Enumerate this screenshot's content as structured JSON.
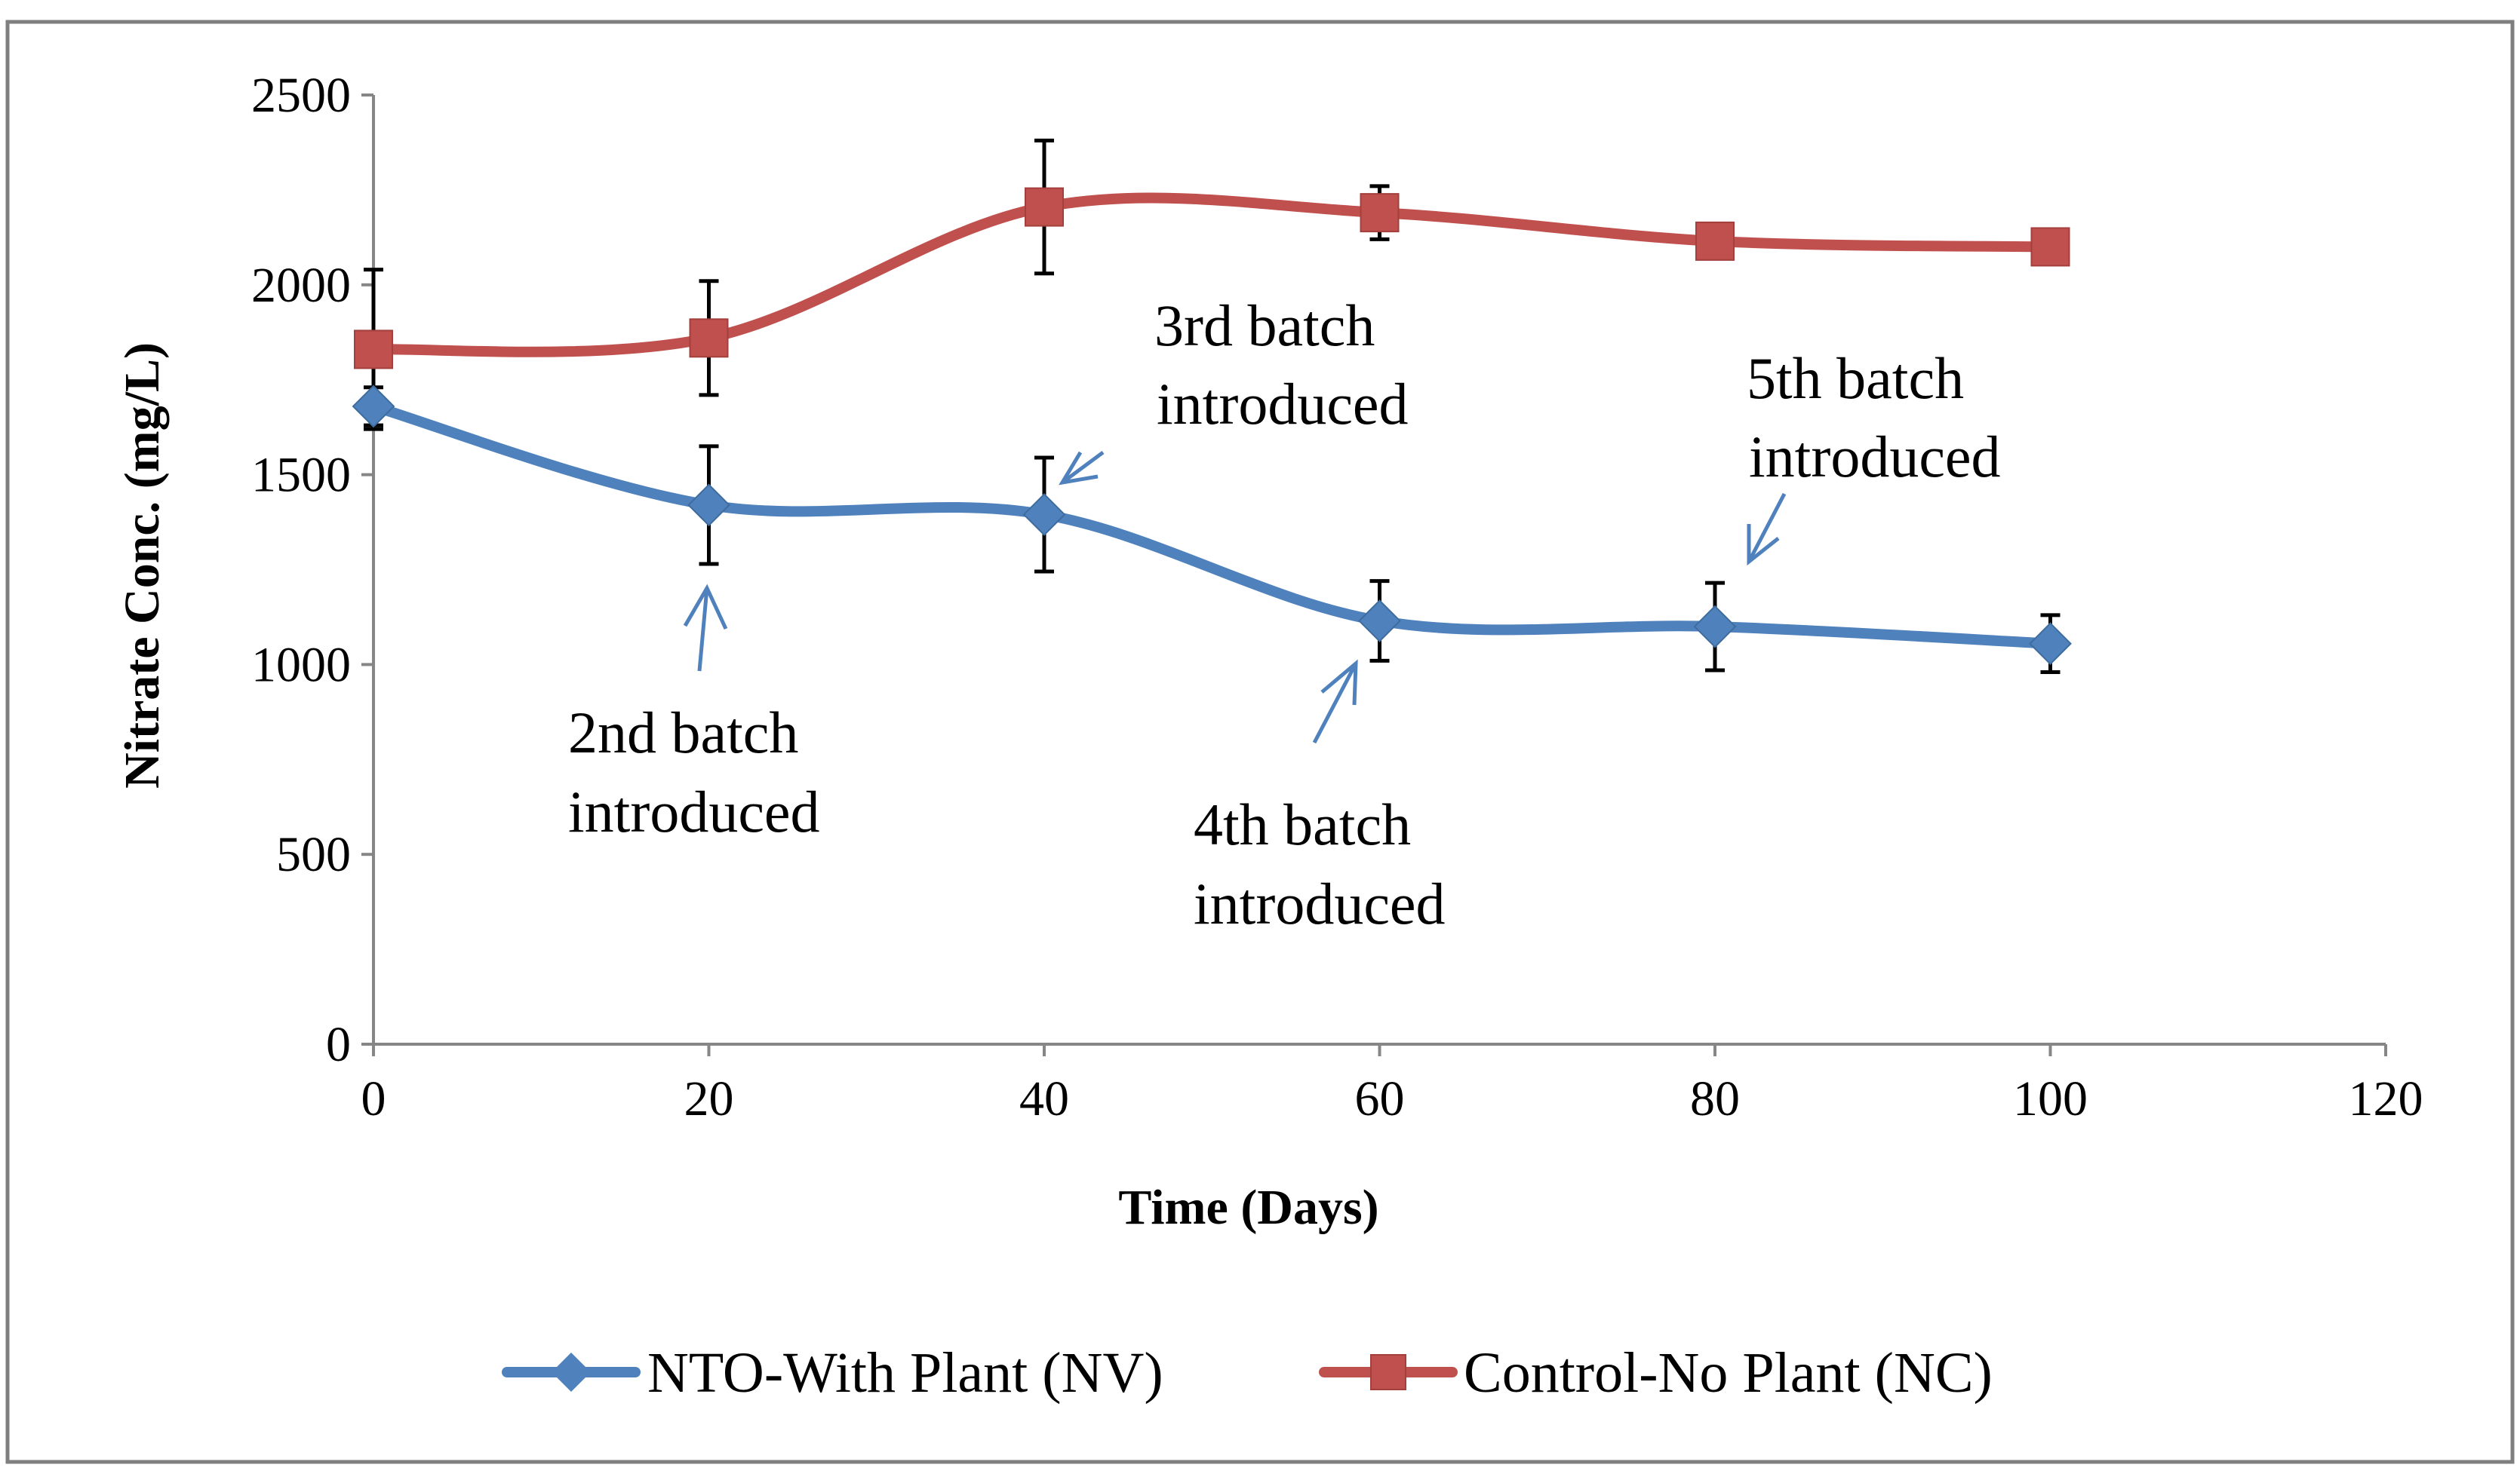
{
  "chart_data": {
    "type": "line",
    "title": "",
    "xlabel": "Time (Days)",
    "ylabel": "Nitrate Conc. (mg/L)",
    "xlim": [
      0,
      120
    ],
    "ylim": [
      0,
      2500
    ],
    "xticks": [
      0,
      20,
      40,
      60,
      80,
      100,
      120
    ],
    "yticks": [
      0,
      500,
      1000,
      1500,
      2000,
      2500
    ],
    "grid": false,
    "legend_position": "bottom",
    "series": [
      {
        "name": "NTO-With Plant (NV)",
        "color": "#4F81BD",
        "marker": "diamond",
        "x": [
          0,
          20,
          40,
          60,
          80,
          100
        ],
        "values": [
          1680,
          1420,
          1395,
          1115,
          1100,
          1055
        ],
        "error": [
          50,
          155,
          150,
          105,
          115,
          75
        ]
      },
      {
        "name": "Control-No Plant (NC)",
        "color": "#C0504D",
        "marker": "square",
        "x": [
          0,
          20,
          40,
          60,
          80,
          100
        ],
        "values": [
          1830,
          1860,
          2205,
          2190,
          2115,
          2100
        ],
        "error": [
          210,
          150,
          175,
          70,
          20,
          25
        ]
      }
    ],
    "annotations": [
      {
        "id": "batch2",
        "lines": [
          "2nd batch",
          "introduced"
        ],
        "x": 20
      },
      {
        "id": "batch3",
        "lines": [
          "3rd batch",
          "introduced"
        ],
        "x": 40
      },
      {
        "id": "batch4",
        "lines": [
          "4th batch",
          "introduced"
        ],
        "x": 60
      },
      {
        "id": "batch5",
        "lines": [
          "5th batch",
          "introduced"
        ],
        "x": 80
      }
    ]
  }
}
